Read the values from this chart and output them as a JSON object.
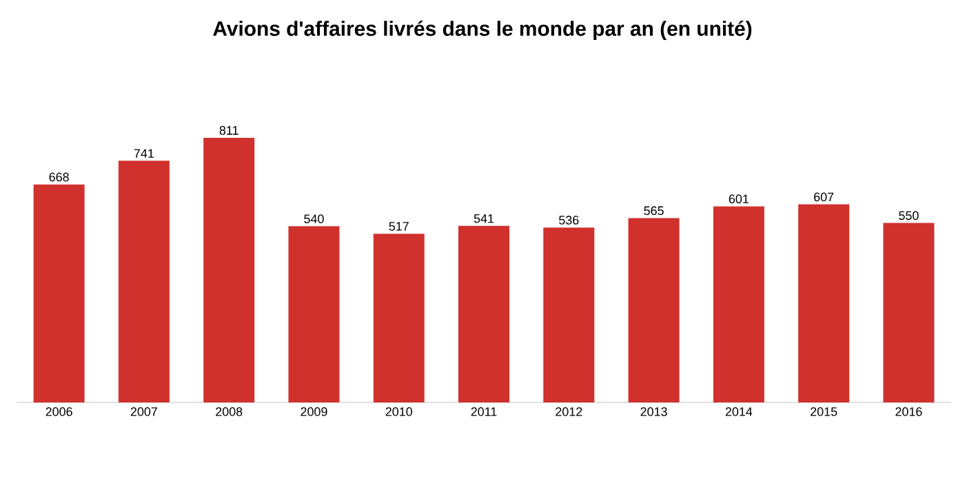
{
  "chart_data": {
    "type": "bar",
    "title": "Avions d'affaires livrés dans le monde par an (en unité)",
    "categories": [
      "2006",
      "2007",
      "2008",
      "2009",
      "2010",
      "2011",
      "2012",
      "2013",
      "2014",
      "2015",
      "2016"
    ],
    "values": [
      668,
      741,
      811,
      540,
      517,
      541,
      536,
      565,
      601,
      607,
      550
    ],
    "color": "#d0312d",
    "data_labels": true
  }
}
